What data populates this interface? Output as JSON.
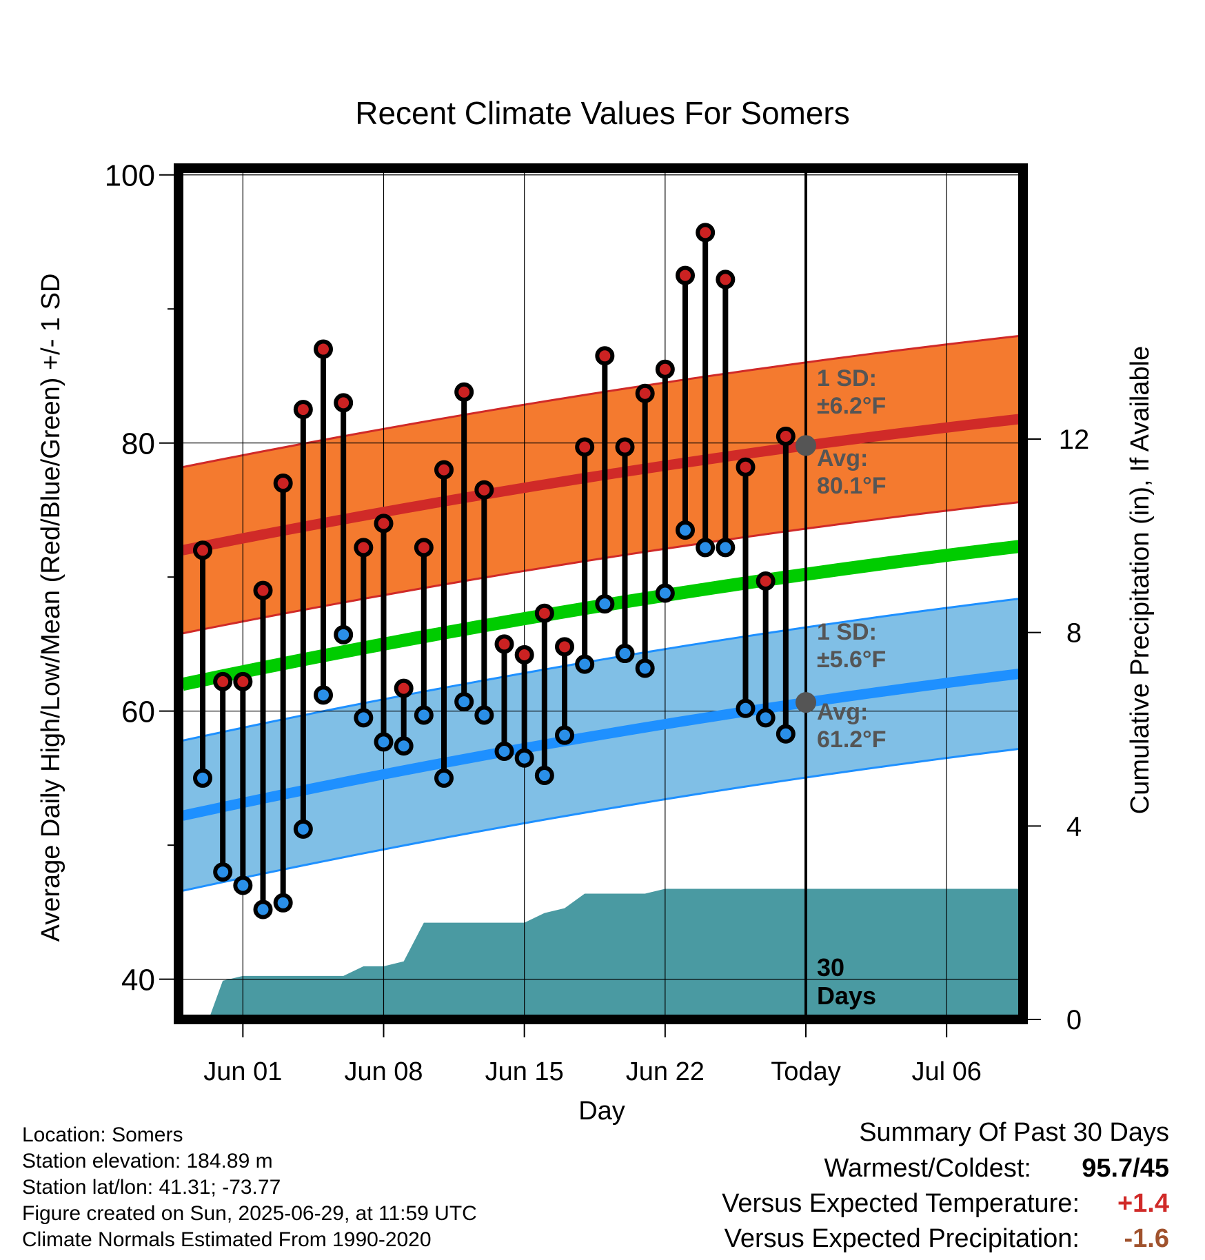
{
  "chart_data": {
    "type": "line",
    "title": "Recent Climate Values For Somers",
    "xlabel": "Day",
    "ylabel": "Average Daily High/Low/Mean (Red/Blue/Green) +/- 1 SD",
    "y2label": "Cumulative Precipitation (in), If Available",
    "ylim": [
      37,
      100.5
    ],
    "y2lim": [
      0,
      17.6
    ],
    "x_range": [
      -3.2,
      38.8
    ],
    "y_ticks": [
      40,
      60,
      80,
      100
    ],
    "y2_ticks": [
      0,
      4,
      8,
      12
    ],
    "x_ticks": [
      {
        "x": 0,
        "label": "Jun 01"
      },
      {
        "x": 7,
        "label": "Jun 08"
      },
      {
        "x": 14,
        "label": "Jun 15"
      },
      {
        "x": 21,
        "label": "Jun 22"
      },
      {
        "x": 28,
        "label": "Today"
      },
      {
        "x": 35,
        "label": "Jul 06"
      }
    ],
    "today_x": 28,
    "grid": true,
    "days": [
      -2,
      -1,
      0,
      1,
      2,
      3,
      4,
      5,
      6,
      7,
      8,
      9,
      10,
      11,
      12,
      13,
      14,
      15,
      16,
      17,
      18,
      19,
      20,
      21,
      22,
      23,
      24,
      25,
      26,
      27
    ],
    "highs": [
      72,
      62.2,
      62.2,
      69,
      77,
      82.5,
      87,
      83,
      72.2,
      74,
      61.7,
      72.2,
      78,
      83.8,
      76.5,
      65,
      64.2,
      67.3,
      64.8,
      79.7,
      86.5,
      79.7,
      83.7,
      85.5,
      92.5,
      95.7,
      92.2,
      78.2,
      69.7,
      80.5
    ],
    "lows": [
      55,
      48,
      47,
      45.2,
      45.7,
      51.2,
      61.2,
      65.7,
      59.5,
      57.7,
      57.4,
      59.7,
      55,
      60.7,
      59.7,
      57,
      56.5,
      55.2,
      58.2,
      63.5,
      68,
      64.3,
      63.2,
      68.8,
      73.5,
      72.2,
      72.2,
      60.2,
      59.5,
      58.3
    ],
    "normal_x": [
      -3,
      38.7
    ],
    "avg_high": [
      72,
      81.8
    ],
    "avg_low": [
      52.2,
      62.8
    ],
    "avg_mean": [
      62,
      72.3
    ],
    "sd_high": 6.2,
    "sd_low": 5.6,
    "precip_cum": {
      "x": [
        -1.7,
        -1,
        0,
        1,
        2,
        3,
        4,
        5,
        6,
        7,
        8,
        9,
        10,
        11,
        12,
        13,
        14,
        15,
        16,
        17,
        18,
        19,
        20,
        21,
        22,
        23,
        24,
        25,
        26,
        27,
        28,
        38.7
      ],
      "y": [
        0,
        0.8,
        0.9,
        0.9,
        0.9,
        0.9,
        0.9,
        0.9,
        1.1,
        1.1,
        1.2,
        2.0,
        2.0,
        2.0,
        2.0,
        2.0,
        2.0,
        2.2,
        2.3,
        2.6,
        2.6,
        2.6,
        2.6,
        2.7,
        2.7,
        2.7,
        2.7,
        2.7,
        2.7,
        2.7,
        2.7,
        2.7
      ]
    },
    "annotations": {
      "high_sd_label": "1 SD:",
      "high_sd_value": "±6.2°F",
      "high_avg_label": "Avg:",
      "high_avg_value": "80.1°F",
      "low_sd_label": "1 SD:",
      "low_sd_value": "±5.6°F",
      "low_avg_label": "Avg:",
      "low_avg_value": "61.2°F",
      "days_num": "30",
      "days_word": "Days"
    },
    "colors": {
      "high_band": "#f47a2f",
      "high_line": "#d02a28",
      "low_band": "#80bfe6",
      "low_line": "#1e90ff",
      "mean_line": "#00cc00",
      "precip": "#4a9aa2",
      "high_dot": "#cc2222",
      "low_dot": "#2a8fe8",
      "annotation": "#555555"
    }
  },
  "footer": {
    "location": "Location: Somers",
    "elevation": "Station elevation: 184.89 m",
    "latlon": "Station lat/lon: 41.31; -73.77",
    "created": "Figure created on Sun, 2025-06-29, at 11:59 UTC",
    "normals": "Climate Normals Estimated From 1990-2020"
  },
  "summary": {
    "heading": "Summary Of Past 30 Days",
    "warm_cold_label": "Warmest/Coldest:",
    "warm_cold_value": "95.7/45",
    "temp_label": "Versus Expected Temperature:",
    "temp_value": "+1.4",
    "temp_color": "#d02a28",
    "precip_label": "Versus Expected Precipitation:",
    "precip_value": "-1.6",
    "precip_color": "#a0522d"
  }
}
